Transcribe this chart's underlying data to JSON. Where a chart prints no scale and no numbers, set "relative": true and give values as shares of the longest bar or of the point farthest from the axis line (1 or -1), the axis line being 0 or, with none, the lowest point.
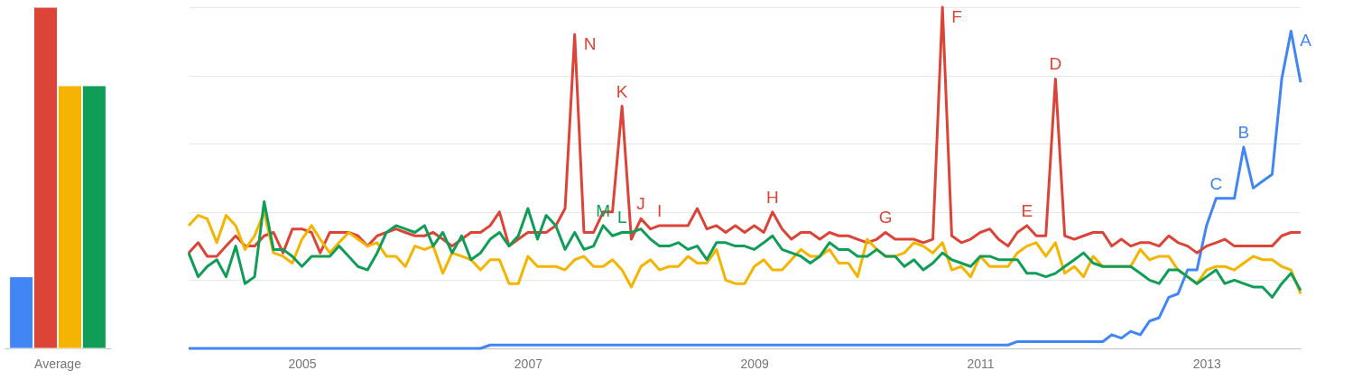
{
  "chart_data": [
    {
      "type": "bar",
      "relative": true,
      "categories": [
        "Average"
      ],
      "series": [
        {
          "color": "#4285f4",
          "values": [
            0.21
          ]
        },
        {
          "color": "#db4437",
          "values": [
            1.0
          ]
        },
        {
          "color": "#f4b400",
          "values": [
            0.77
          ]
        },
        {
          "color": "#0f9d58",
          "values": [
            0.77
          ]
        }
      ]
    },
    {
      "type": "line",
      "relative": true,
      "grid": "y",
      "xlim": [
        "2004-01",
        "2013-11"
      ],
      "xticks": [
        "2005",
        "2007",
        "2009",
        "2011",
        "2013"
      ],
      "x": [
        "2004-01",
        "2004-02",
        "2004-03",
        "2004-04",
        "2004-05",
        "2004-06",
        "2004-07",
        "2004-08",
        "2004-09",
        "2004-10",
        "2004-11",
        "2004-12",
        "2005-01",
        "2005-02",
        "2005-03",
        "2005-04",
        "2005-05",
        "2005-06",
        "2005-07",
        "2005-08",
        "2005-09",
        "2005-10",
        "2005-11",
        "2005-12",
        "2006-01",
        "2006-02",
        "2006-03",
        "2006-04",
        "2006-05",
        "2006-06",
        "2006-07",
        "2006-08",
        "2006-09",
        "2006-10",
        "2006-11",
        "2006-12",
        "2007-01",
        "2007-02",
        "2007-03",
        "2007-04",
        "2007-05",
        "2007-06",
        "2007-07",
        "2007-08",
        "2007-09",
        "2007-10",
        "2007-11",
        "2007-12",
        "2008-01",
        "2008-02",
        "2008-03",
        "2008-04",
        "2008-05",
        "2008-06",
        "2008-07",
        "2008-08",
        "2008-09",
        "2008-10",
        "2008-11",
        "2008-12",
        "2009-01",
        "2009-02",
        "2009-03",
        "2009-04",
        "2009-05",
        "2009-06",
        "2009-07",
        "2009-08",
        "2009-09",
        "2009-10",
        "2009-11",
        "2009-12",
        "2010-01",
        "2010-02",
        "2010-03",
        "2010-04",
        "2010-05",
        "2010-06",
        "2010-07",
        "2010-08",
        "2010-09",
        "2010-10",
        "2010-11",
        "2010-12",
        "2011-01",
        "2011-02",
        "2011-03",
        "2011-04",
        "2011-05",
        "2011-06",
        "2011-07",
        "2011-08",
        "2011-09",
        "2011-10",
        "2011-11",
        "2011-12",
        "2012-01",
        "2012-02",
        "2012-03",
        "2012-04",
        "2012-05",
        "2012-06",
        "2012-07",
        "2012-08",
        "2012-09",
        "2012-10",
        "2012-11",
        "2012-12",
        "2013-01",
        "2013-02",
        "2013-03",
        "2013-04",
        "2013-05",
        "2013-06",
        "2013-07",
        "2013-08",
        "2013-09",
        "2013-10",
        "2013-11"
      ],
      "series": [
        {
          "color": "#4285f4",
          "values": [
            0,
            0,
            0,
            0,
            0,
            0,
            0,
            0,
            0,
            0,
            0,
            0,
            0,
            0,
            0,
            0,
            0,
            0,
            0,
            0,
            0,
            0,
            0,
            0,
            0,
            0,
            0,
            0,
            0,
            0,
            0,
            0,
            0.01,
            0.01,
            0.01,
            0.01,
            0.01,
            0.01,
            0.01,
            0.01,
            0.01,
            0.01,
            0.01,
            0.01,
            0.01,
            0.01,
            0.01,
            0.01,
            0.01,
            0.01,
            0.01,
            0.01,
            0.01,
            0.01,
            0.01,
            0.01,
            0.01,
            0.01,
            0.01,
            0.01,
            0.01,
            0.01,
            0.01,
            0.01,
            0.01,
            0.01,
            0.01,
            0.01,
            0.01,
            0.01,
            0.01,
            0.01,
            0.01,
            0.01,
            0.01,
            0.01,
            0.01,
            0.01,
            0.01,
            0.01,
            0.01,
            0.01,
            0.01,
            0.01,
            0.01,
            0.01,
            0.01,
            0.01,
            0.02,
            0.02,
            0.02,
            0.02,
            0.02,
            0.02,
            0.02,
            0.02,
            0.02,
            0.02,
            0.04,
            0.03,
            0.05,
            0.04,
            0.08,
            0.09,
            0.15,
            0.16,
            0.23,
            0.23,
            0.36,
            0.44,
            0.44,
            0.44,
            0.59,
            0.47,
            0.49,
            0.51,
            0.79,
            0.93,
            0.78
          ]
        },
        {
          "color": "#db4437",
          "values": [
            0.28,
            0.31,
            0.27,
            0.27,
            0.3,
            0.33,
            0.3,
            0.3,
            0.33,
            0.34,
            0.28,
            0.35,
            0.35,
            0.34,
            0.28,
            0.34,
            0.34,
            0.34,
            0.33,
            0.3,
            0.33,
            0.34,
            0.35,
            0.34,
            0.33,
            0.33,
            0.34,
            0.32,
            0.3,
            0.32,
            0.34,
            0.34,
            0.36,
            0.4,
            0.3,
            0.32,
            0.34,
            0.34,
            0.34,
            0.36,
            0.41,
            0.92,
            0.34,
            0.34,
            0.4,
            0.4,
            0.71,
            0.32,
            0.38,
            0.35,
            0.36,
            0.36,
            0.36,
            0.36,
            0.41,
            0.35,
            0.36,
            0.34,
            0.36,
            0.34,
            0.36,
            0.34,
            0.4,
            0.35,
            0.32,
            0.34,
            0.34,
            0.32,
            0.34,
            0.33,
            0.33,
            0.32,
            0.31,
            0.32,
            0.34,
            0.32,
            0.32,
            0.32,
            0.31,
            0.32,
            1.0,
            0.33,
            0.31,
            0.32,
            0.34,
            0.35,
            0.32,
            0.3,
            0.34,
            0.36,
            0.33,
            0.33,
            0.79,
            0.33,
            0.32,
            0.33,
            0.34,
            0.34,
            0.3,
            0.32,
            0.3,
            0.31,
            0.31,
            0.3,
            0.33,
            0.31,
            0.3,
            0.28,
            0.3,
            0.31,
            0.32,
            0.3,
            0.3,
            0.3,
            0.3,
            0.3,
            0.33,
            0.34,
            0.34
          ]
        },
        {
          "color": "#f4b400",
          "values": [
            0.36,
            0.39,
            0.38,
            0.31,
            0.39,
            0.36,
            0.29,
            0.33,
            0.4,
            0.28,
            0.27,
            0.25,
            0.32,
            0.36,
            0.32,
            0.28,
            0.31,
            0.34,
            0.32,
            0.3,
            0.31,
            0.27,
            0.27,
            0.24,
            0.3,
            0.29,
            0.3,
            0.22,
            0.28,
            0.27,
            0.26,
            0.23,
            0.26,
            0.26,
            0.19,
            0.19,
            0.27,
            0.24,
            0.24,
            0.24,
            0.23,
            0.26,
            0.27,
            0.24,
            0.24,
            0.26,
            0.23,
            0.18,
            0.24,
            0.26,
            0.23,
            0.24,
            0.24,
            0.27,
            0.25,
            0.25,
            0.29,
            0.2,
            0.19,
            0.19,
            0.24,
            0.26,
            0.23,
            0.23,
            0.26,
            0.29,
            0.27,
            0.27,
            0.29,
            0.25,
            0.25,
            0.21,
            0.32,
            0.29,
            0.27,
            0.27,
            0.28,
            0.31,
            0.3,
            0.28,
            0.31,
            0.23,
            0.24,
            0.21,
            0.27,
            0.24,
            0.24,
            0.24,
            0.28,
            0.3,
            0.31,
            0.27,
            0.31,
            0.22,
            0.24,
            0.21,
            0.27,
            0.24,
            0.24,
            0.24,
            0.24,
            0.29,
            0.26,
            0.27,
            0.27,
            0.23,
            0.21,
            0.19,
            0.23,
            0.24,
            0.24,
            0.23,
            0.25,
            0.27,
            0.26,
            0.26,
            0.24,
            0.23,
            0.16
          ]
        },
        {
          "color": "#0f9d58",
          "values": [
            0.28,
            0.21,
            0.24,
            0.26,
            0.21,
            0.3,
            0.19,
            0.21,
            0.43,
            0.29,
            0.29,
            0.27,
            0.24,
            0.27,
            0.27,
            0.27,
            0.3,
            0.27,
            0.24,
            0.23,
            0.28,
            0.34,
            0.36,
            0.35,
            0.34,
            0.36,
            0.3,
            0.34,
            0.28,
            0.33,
            0.26,
            0.28,
            0.32,
            0.34,
            0.3,
            0.33,
            0.41,
            0.32,
            0.39,
            0.36,
            0.29,
            0.34,
            0.29,
            0.3,
            0.36,
            0.33,
            0.34,
            0.34,
            0.35,
            0.32,
            0.3,
            0.3,
            0.31,
            0.29,
            0.3,
            0.26,
            0.31,
            0.31,
            0.3,
            0.3,
            0.29,
            0.31,
            0.33,
            0.29,
            0.28,
            0.27,
            0.25,
            0.27,
            0.31,
            0.29,
            0.29,
            0.27,
            0.27,
            0.29,
            0.27,
            0.27,
            0.24,
            0.26,
            0.23,
            0.25,
            0.28,
            0.26,
            0.25,
            0.24,
            0.27,
            0.27,
            0.26,
            0.26,
            0.26,
            0.22,
            0.22,
            0.21,
            0.22,
            0.24,
            0.26,
            0.28,
            0.25,
            0.24,
            0.24,
            0.24,
            0.24,
            0.22,
            0.2,
            0.19,
            0.23,
            0.23,
            0.21,
            0.19,
            0.21,
            0.23,
            0.19,
            0.2,
            0.19,
            0.18,
            0.18,
            0.15,
            0.19,
            0.22,
            0.17
          ]
        }
      ],
      "annotations": [
        {
          "text": "A",
          "x": "2013-10",
          "y": 0.93
        },
        {
          "text": "B",
          "x": "2013-05",
          "y": 0.59
        },
        {
          "text": "C",
          "x": "2013-02",
          "y": 0.44
        },
        {
          "text": "D",
          "x": "2011-09",
          "y": 0.79
        },
        {
          "text": "E",
          "x": "2011-06",
          "y": 0.36
        },
        {
          "text": "F",
          "x": "2010-09",
          "y": 1.0
        },
        {
          "text": "G",
          "x": "2010-03",
          "y": 0.34
        },
        {
          "text": "H",
          "x": "2009-03",
          "y": 0.4
        },
        {
          "text": "I",
          "x": "2008-03",
          "y": 0.36
        },
        {
          "text": "J",
          "x": "2008-01",
          "y": 0.38
        },
        {
          "text": "K",
          "x": "2007-11",
          "y": 0.71
        },
        {
          "text": "L",
          "x": "2007-11",
          "y": 0.34
        },
        {
          "text": "M",
          "x": "2007-09",
          "y": 0.36
        },
        {
          "text": "N",
          "x": "2007-06",
          "y": 0.92
        }
      ]
    }
  ]
}
